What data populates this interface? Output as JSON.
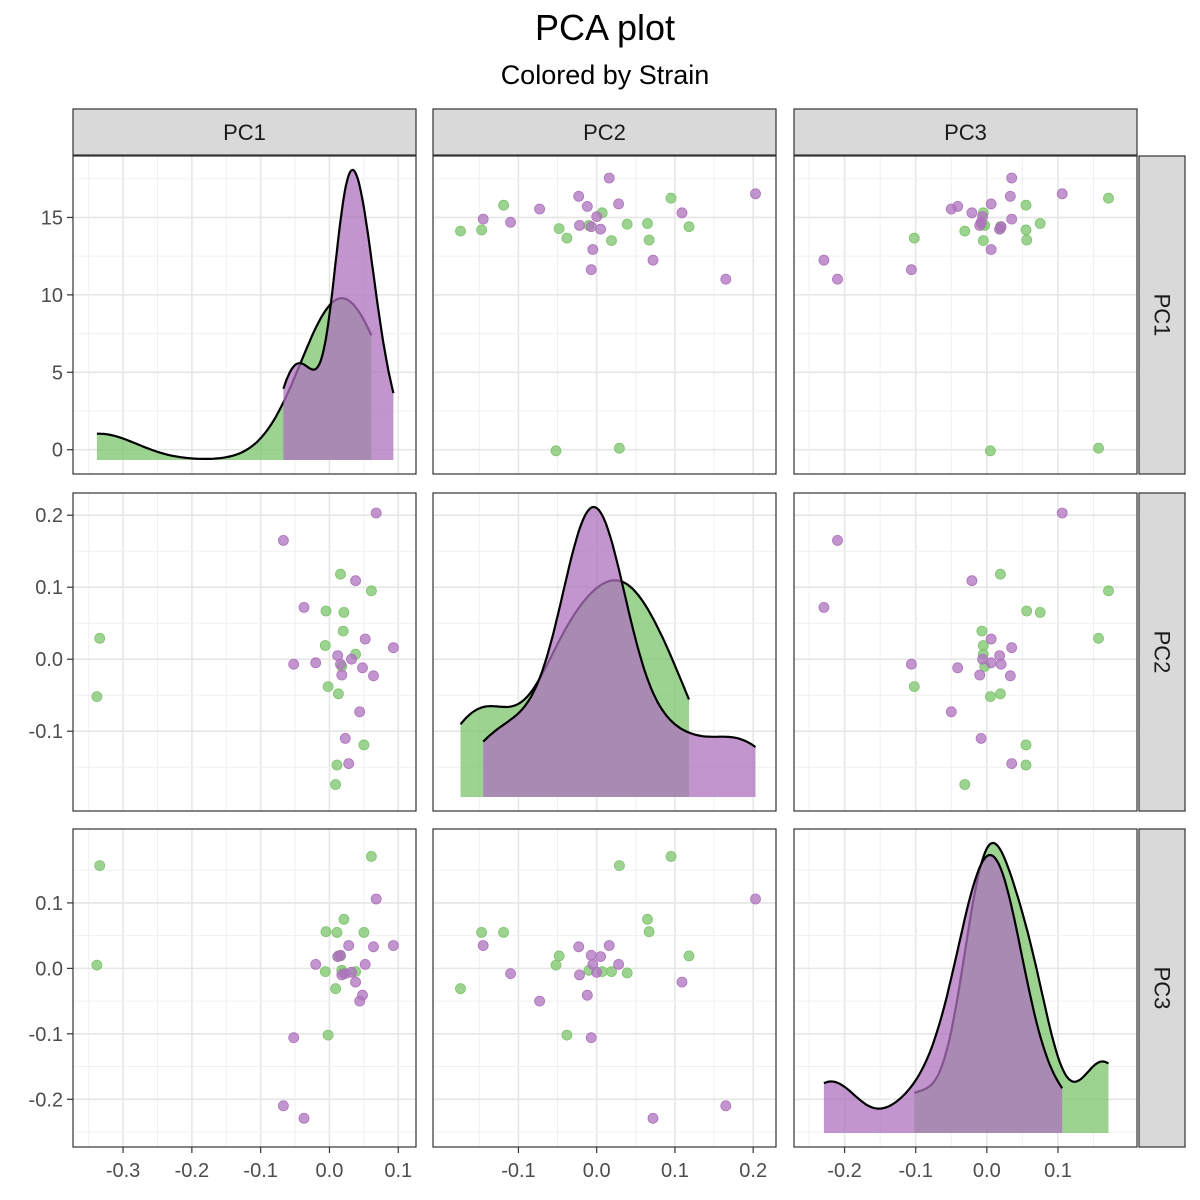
{
  "title": "PCA plot",
  "subtitle": "Colored by Strain",
  "colors": {
    "green": "#7cc46b",
    "purple": "#ae72bd",
    "dark_purple": "#5a2a63"
  },
  "chart_data": {
    "type": "scatter",
    "variables": [
      "PC1",
      "PC2",
      "PC3"
    ],
    "diagonal": "density",
    "density_y_axis": {
      "ticks": [
        0,
        5,
        10,
        15
      ],
      "ylim": [
        -0.6,
        18
      ]
    },
    "axes": {
      "PC1": {
        "lim": [
          -0.351,
          0.104
        ],
        "ticks": [
          -0.3,
          -0.2,
          -0.1,
          0.0,
          0.1
        ],
        "tick_labels": [
          "-0.3",
          "-0.2",
          "-0.1",
          "0.0",
          "0.1"
        ]
      },
      "PC2": {
        "lim": [
          -0.19,
          0.21
        ],
        "ticks": [
          -0.1,
          0.0,
          0.1,
          0.2
        ],
        "tick_labels": [
          "-0.1",
          "0.0",
          "0.1",
          "0.2"
        ]
      },
      "PC3": {
        "lim": [
          -0.25,
          0.19
        ],
        "ticks": [
          -0.2,
          -0.1,
          0.0,
          0.1
        ],
        "tick_labels": [
          "-0.2",
          "-0.1",
          "0.0",
          "0.1"
        ]
      }
    },
    "groups": [
      {
        "color": "#7cc46b",
        "points": [
          [
            -0.338,
            -0.052,
            0.005
          ],
          [
            -0.334,
            0.029,
            0.157
          ],
          [
            0.009,
            -0.174,
            -0.031
          ],
          [
            0.011,
            -0.147,
            0.055
          ],
          [
            0.013,
            -0.048,
            0.019
          ],
          [
            0.016,
            0.118,
            0.019
          ],
          [
            0.02,
            0.039,
            -0.007
          ],
          [
            0.021,
            0.065,
            0.075
          ],
          [
            -0.005,
            0.067,
            0.056
          ],
          [
            -0.006,
            0.019,
            -0.005
          ],
          [
            -0.002,
            -0.038,
            -0.102
          ],
          [
            0.05,
            -0.119,
            0.055
          ],
          [
            0.038,
            0.007,
            -0.005
          ],
          [
            0.061,
            0.095,
            0.171
          ],
          [
            0.018,
            -0.01,
            -0.003
          ]
        ]
      },
      {
        "color": "#ae72bd",
        "points": [
          [
            -0.067,
            0.165,
            -0.21
          ],
          [
            -0.052,
            -0.007,
            -0.106
          ],
          [
            -0.037,
            0.072,
            -0.229
          ],
          [
            -0.02,
            -0.005,
            0.006
          ],
          [
            0.012,
            0.005,
            0.018
          ],
          [
            0.016,
            -0.007,
            0.02
          ],
          [
            0.018,
            -0.022,
            -0.01
          ],
          [
            0.023,
            -0.11,
            -0.008
          ],
          [
            0.028,
            -0.145,
            0.035
          ],
          [
            0.032,
            0.0,
            -0.006
          ],
          [
            0.038,
            0.109,
            -0.021
          ],
          [
            0.044,
            -0.073,
            -0.05
          ],
          [
            0.048,
            -0.012,
            -0.041
          ],
          [
            0.052,
            0.028,
            0.006
          ],
          [
            0.064,
            -0.023,
            0.033
          ],
          [
            0.068,
            0.203,
            0.106
          ],
          [
            0.093,
            0.016,
            0.035
          ]
        ]
      }
    ],
    "legend": "none"
  }
}
